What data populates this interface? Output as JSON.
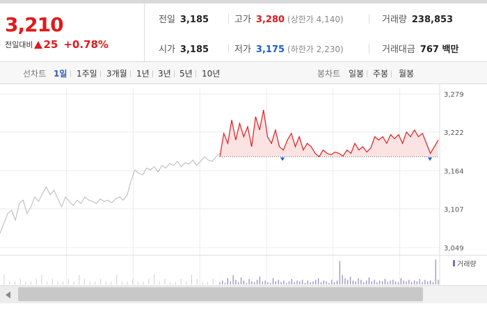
{
  "quote": {
    "price": "3,210",
    "change_label": "전일대비",
    "change": "25",
    "change_pct": "+0.78%",
    "prev_close_label": "전일",
    "prev_close": "3,185",
    "open_label": "시가",
    "open": "3,185",
    "high_label": "고가",
    "high": "3,280",
    "upper_limit": "(상한가 4,140)",
    "low_label": "저가",
    "low": "3,175",
    "lower_limit": "(하한가 2,230)",
    "volume_label": "거래량",
    "volume": "238,853",
    "amount_label": "거래대금",
    "amount": "767 백만"
  },
  "toolbar": {
    "line_chart_label": "선차트",
    "periods": [
      "1일",
      "1주일",
      "3개월",
      "1년",
      "3년",
      "5년",
      "10년"
    ],
    "active_period": "1일",
    "candle_label": "봉차트",
    "candles": [
      "일봉",
      "주봉",
      "월봉"
    ]
  },
  "colors": {
    "up": "#e0191b",
    "down": "#1c5bd6",
    "prev_line": "#b8b8b8",
    "volume": "#7b6bb5"
  },
  "chart_data": {
    "type": "line",
    "y_ticks": [
      3279,
      3222,
      3164,
      3107,
      3049
    ],
    "y_tick_labels": [
      "3,279",
      "3,222",
      "3,164",
      "3,107",
      "3,049"
    ],
    "ylim": [
      3049,
      3279
    ],
    "base_price": 3185,
    "legend": "거래량",
    "series": [
      {
        "role": "previous-day",
        "values": [
          3070,
          3085,
          3100,
          3105,
          3090,
          3115,
          3120,
          3100,
          3110,
          3125,
          3118,
          3130,
          3140,
          3128,
          3135,
          3122,
          3110,
          3125,
          3118,
          3112,
          3120,
          3115,
          3125,
          3120,
          3118,
          3115,
          3122,
          3118,
          3120,
          3116,
          3122,
          3125,
          3120,
          3128,
          3150,
          3165,
          3160,
          3158,
          3168,
          3165,
          3170,
          3162,
          3172,
          3168,
          3175,
          3172,
          3178,
          3170,
          3176,
          3174,
          3180,
          3172,
          3178,
          3185,
          3180,
          3178,
          3185,
          3190
        ]
      },
      {
        "role": "today",
        "values": [
          3185,
          3220,
          3205,
          3240,
          3210,
          3235,
          3215,
          3230,
          3200,
          3245,
          3225,
          3255,
          3215,
          3205,
          3225,
          3200,
          3195,
          3210,
          3220,
          3200,
          3215,
          3195,
          3205,
          3200,
          3190,
          3185,
          3195,
          3190,
          3188,
          3192,
          3190,
          3186,
          3195,
          3190,
          3205,
          3195,
          3200,
          3192,
          3198,
          3215,
          3210,
          3215,
          3205,
          3218,
          3212,
          3218,
          3205,
          3222,
          3215,
          3225,
          3215,
          3220,
          3205,
          3190,
          3200,
          3210
        ]
      }
    ],
    "volume": [
      3,
      5,
      2,
      8,
      4,
      12,
      6,
      3,
      9,
      5,
      2,
      7,
      4,
      3,
      6,
      10,
      4,
      5,
      3,
      2,
      8,
      4,
      6,
      3,
      5,
      2,
      4,
      7,
      3,
      5,
      4,
      6,
      2,
      5,
      3,
      4,
      6,
      8,
      3,
      5,
      4,
      2,
      6,
      3,
      5,
      30,
      12,
      8,
      6,
      10,
      5,
      4,
      8,
      6,
      3,
      5,
      9,
      4,
      6,
      3,
      5,
      4,
      7,
      3,
      5,
      6,
      4,
      3,
      8,
      5,
      4,
      6,
      3,
      5,
      4,
      7,
      3,
      6,
      4,
      5,
      3,
      32,
      6
    ]
  }
}
